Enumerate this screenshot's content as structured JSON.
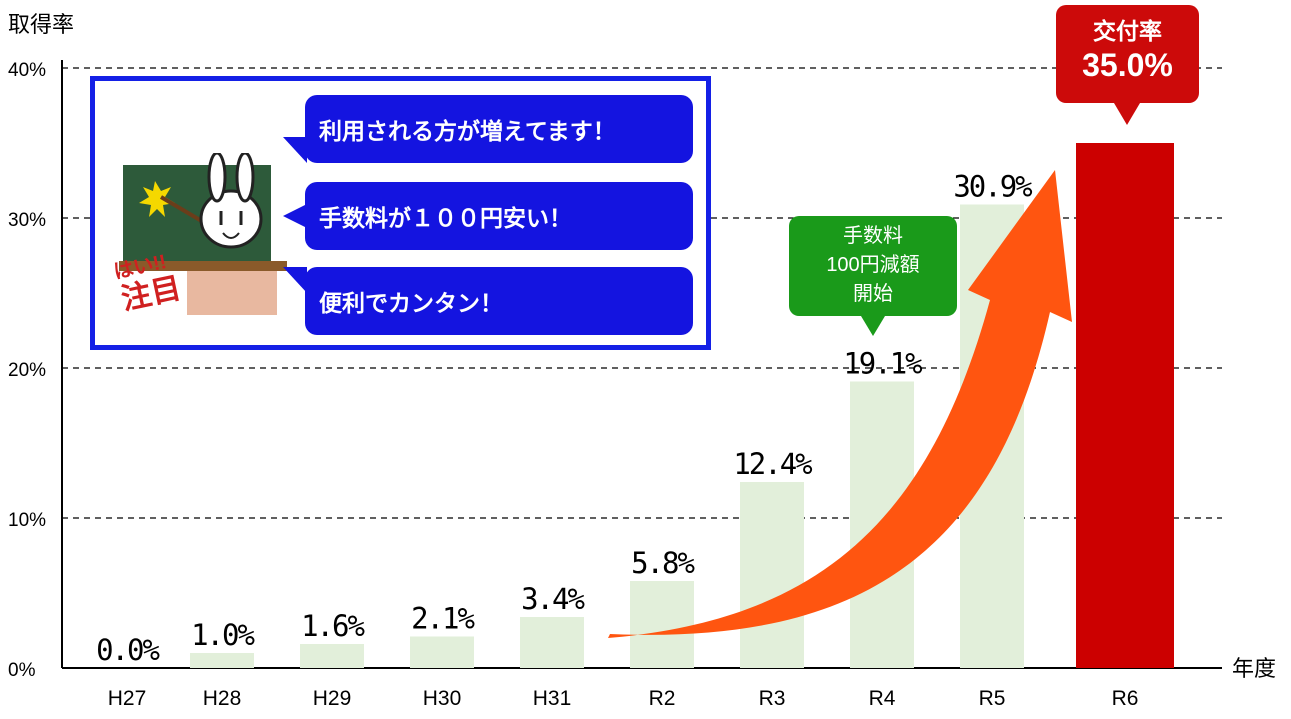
{
  "chart_data": {
    "type": "bar",
    "ylabel": "取得率",
    "xlabel": "年度",
    "ylim": [
      0,
      40
    ],
    "yticks": [
      "0%",
      "10%",
      "20%",
      "30%",
      "40%"
    ],
    "grid": true,
    "categories": [
      "H27",
      "H28",
      "H29",
      "H30",
      "H31",
      "R2",
      "R3",
      "R4",
      "R5",
      "R6"
    ],
    "values": [
      0.0,
      1.0,
      1.6,
      2.1,
      3.4,
      5.8,
      12.4,
      19.1,
      30.9,
      35.0
    ],
    "value_labels": [
      "0.0%",
      "1.0%",
      "1.6%",
      "2.1%",
      "3.4%",
      "5.8%",
      "12.4%",
      "19.1%",
      "30.9%",
      ""
    ],
    "bar_color": "#e2efda",
    "highlight_color": "#cc0000",
    "arrow_color": "#ff5510"
  },
  "callout": {
    "bubbles": [
      "利用される方が増えてます！",
      "手数料が１００円安い！",
      "便利でカンタン！"
    ],
    "mascot_sign": [
      "はい!!",
      "注目"
    ]
  },
  "green_note": {
    "lines": [
      "手数料",
      "100円減額",
      "開始"
    ]
  },
  "red_note": {
    "line1": "交付率",
    "line2": "35.0%"
  }
}
